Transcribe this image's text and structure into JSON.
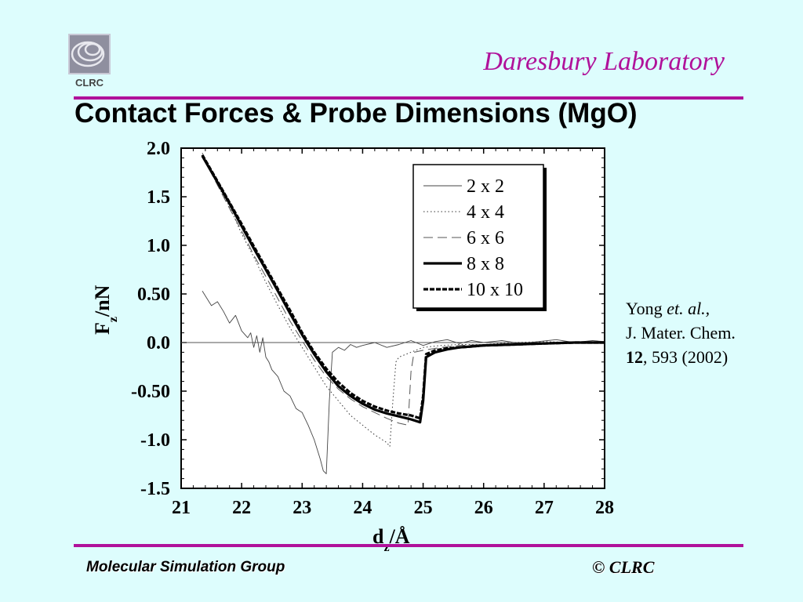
{
  "header": {
    "lab_name": "Daresbury Laboratory",
    "slide_title": "Contact Forces & Probe Dimensions (MgO)",
    "logo_text": "CLRC"
  },
  "citation": {
    "author": "Yong",
    "etal": "et. al.,",
    "journal": "J. Mater. Chem.",
    "volume": "12",
    "pages_year": ", 593 (2002)"
  },
  "footer": {
    "group": "Molecular Simulation Group",
    "copyright": "© CLRC"
  },
  "chart_data": {
    "type": "line",
    "xlabel": "d",
    "xlabel_sub": "z",
    "xlabel_unit": "/Å",
    "ylabel": "F",
    "ylabel_sub": "z",
    "ylabel_unit": "/nN",
    "xlim": [
      21,
      28
    ],
    "ylim": [
      -1.5,
      2.0
    ],
    "x_ticks": [
      21,
      22,
      23,
      24,
      25,
      26,
      27,
      28
    ],
    "x_tick_labels": [
      "21",
      "22",
      "23",
      "24",
      "25",
      "26",
      "27",
      "28"
    ],
    "y_ticks": [
      2.0,
      1.5,
      1.0,
      0.5,
      0.0,
      -0.5,
      -1.0,
      -1.5
    ],
    "y_tick_labels": [
      "2.0",
      "1.5",
      "1.0",
      "0.50",
      "0.0",
      "-0.50",
      "-1.0",
      "-1.5"
    ],
    "legend_position": "top-right",
    "series": [
      {
        "name": "2 x 2",
        "style": "thin-solid",
        "x": [
          21.35,
          21.5,
          21.6,
          21.7,
          21.8,
          21.9,
          22.0,
          22.1,
          22.15,
          22.2,
          22.25,
          22.3,
          22.35,
          22.4,
          22.45,
          22.5,
          22.6,
          22.7,
          22.8,
          22.9,
          23.0,
          23.1,
          23.2,
          23.3,
          23.35,
          23.4,
          23.45,
          23.5,
          23.6,
          23.7,
          23.8,
          23.9,
          24.0,
          24.2,
          24.4,
          24.6,
          24.8,
          25.0,
          25.2,
          25.4,
          25.6,
          25.8,
          26.0,
          26.3,
          26.6,
          26.9,
          27.2,
          27.5,
          27.8,
          28.0
        ],
        "y": [
          0.53,
          0.38,
          0.42,
          0.32,
          0.2,
          0.28,
          0.12,
          0.05,
          0.1,
          -0.05,
          0.07,
          -0.1,
          0.05,
          -0.15,
          -0.2,
          -0.28,
          -0.35,
          -0.5,
          -0.55,
          -0.68,
          -0.72,
          -0.85,
          -1.0,
          -1.2,
          -1.32,
          -1.35,
          -0.6,
          -0.1,
          -0.05,
          -0.08,
          -0.02,
          -0.05,
          -0.03,
          0.0,
          -0.05,
          -0.02,
          0.02,
          -0.03,
          0.01,
          0.03,
          -0.01,
          0.02,
          0.0,
          0.02,
          -0.01,
          0.01,
          0.03,
          0.0,
          0.02,
          0.01
        ]
      },
      {
        "name": "4 x 4",
        "style": "dotted",
        "x": [
          21.35,
          21.6,
          21.8,
          22.0,
          22.2,
          22.4,
          22.6,
          22.8,
          23.0,
          23.2,
          23.4,
          23.6,
          23.8,
          24.0,
          24.2,
          24.4,
          24.45,
          24.5,
          24.55,
          24.6,
          24.8,
          25.0,
          25.3,
          25.6,
          26.0,
          26.5,
          27.0,
          27.5,
          28.0
        ],
        "y": [
          1.95,
          1.62,
          1.4,
          1.12,
          0.88,
          0.62,
          0.38,
          0.15,
          -0.05,
          -0.25,
          -0.45,
          -0.6,
          -0.75,
          -0.85,
          -0.95,
          -1.03,
          -1.07,
          -0.6,
          -0.2,
          -0.15,
          -0.1,
          -0.05,
          -0.03,
          -0.02,
          -0.02,
          0.0,
          0.01,
          0.0,
          0.01
        ]
      },
      {
        "name": "6 x 6",
        "style": "dashed",
        "x": [
          21.35,
          21.6,
          21.8,
          22.0,
          22.2,
          22.4,
          22.6,
          22.8,
          23.0,
          23.2,
          23.4,
          23.6,
          23.8,
          24.0,
          24.2,
          24.4,
          24.6,
          24.75,
          24.8,
          24.85,
          25.0,
          25.3,
          25.6,
          26.0,
          26.5,
          27.0,
          27.5,
          28.0
        ],
        "y": [
          1.92,
          1.62,
          1.38,
          1.15,
          0.9,
          0.68,
          0.45,
          0.22,
          0.02,
          -0.18,
          -0.35,
          -0.48,
          -0.58,
          -0.66,
          -0.72,
          -0.78,
          -0.83,
          -0.85,
          -0.3,
          -0.1,
          -0.08,
          -0.05,
          -0.03,
          -0.02,
          -0.01,
          0.0,
          0.0,
          0.0
        ]
      },
      {
        "name": "8 x 8",
        "style": "thick-solid",
        "x": [
          21.35,
          21.6,
          21.8,
          22.0,
          22.2,
          22.4,
          22.6,
          22.8,
          23.0,
          23.2,
          23.4,
          23.6,
          23.8,
          24.0,
          24.2,
          24.4,
          24.6,
          24.8,
          24.95,
          25.0,
          25.05,
          25.2,
          25.4,
          25.6,
          25.8,
          26.0,
          26.5,
          27.0,
          27.5,
          28.0
        ],
        "y": [
          1.92,
          1.65,
          1.43,
          1.2,
          0.97,
          0.75,
          0.53,
          0.3,
          0.08,
          -0.12,
          -0.3,
          -0.45,
          -0.55,
          -0.63,
          -0.69,
          -0.73,
          -0.76,
          -0.79,
          -0.82,
          -0.6,
          -0.15,
          -0.1,
          -0.07,
          -0.05,
          -0.04,
          -0.03,
          -0.02,
          -0.01,
          0.0,
          0.0
        ]
      },
      {
        "name": "10 x 10",
        "style": "thick-dashed",
        "x": [
          21.35,
          21.6,
          21.8,
          22.0,
          22.2,
          22.4,
          22.6,
          22.8,
          23.0,
          23.2,
          23.4,
          23.6,
          23.8,
          24.0,
          24.2,
          24.4,
          24.6,
          24.8,
          24.95,
          25.0,
          25.05,
          25.2,
          25.4,
          25.6,
          25.8,
          26.0,
          26.5,
          27.0,
          27.5,
          28.0
        ],
        "y": [
          1.93,
          1.66,
          1.44,
          1.22,
          0.99,
          0.77,
          0.55,
          0.33,
          0.1,
          -0.1,
          -0.27,
          -0.41,
          -0.52,
          -0.6,
          -0.66,
          -0.7,
          -0.73,
          -0.75,
          -0.78,
          -0.55,
          -0.12,
          -0.08,
          -0.06,
          -0.05,
          -0.04,
          -0.03,
          -0.02,
          -0.01,
          0.0,
          0.0
        ]
      }
    ]
  }
}
